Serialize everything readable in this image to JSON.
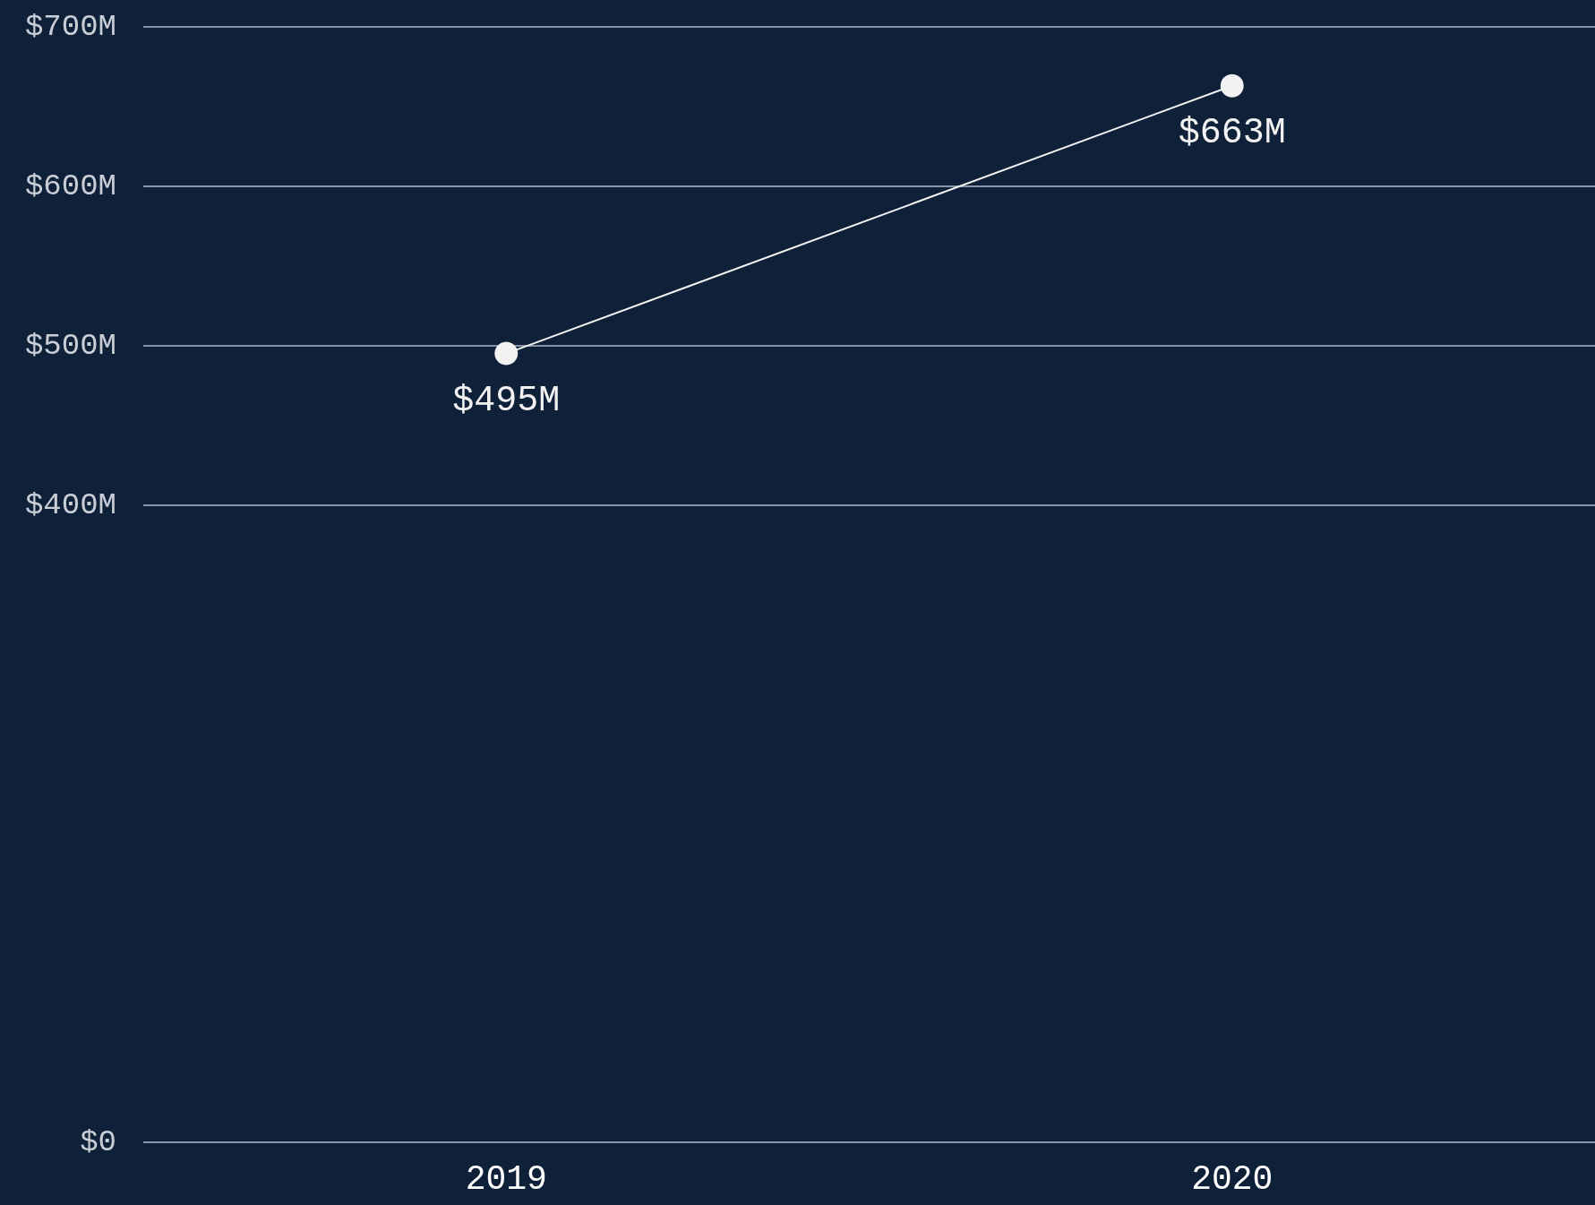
{
  "chart_data": {
    "type": "line",
    "categories": [
      "2019",
      "2020"
    ],
    "series": [
      {
        "color": "#f2f2f2",
        "values": [
          495,
          663
        ],
        "value_labels": [
          "$495M",
          "$663M"
        ]
      }
    ],
    "ylim": [
      0,
      700
    ],
    "yticks": [
      {
        "value": 0,
        "label": "$0"
      },
      {
        "value": 400,
        "label": "$400M"
      },
      {
        "value": 500,
        "label": "$500M"
      },
      {
        "value": 600,
        "label": "$600M"
      },
      {
        "value": 700,
        "label": "$700M"
      }
    ],
    "grid": "y",
    "marker": "circle",
    "line_style": "solid"
  }
}
